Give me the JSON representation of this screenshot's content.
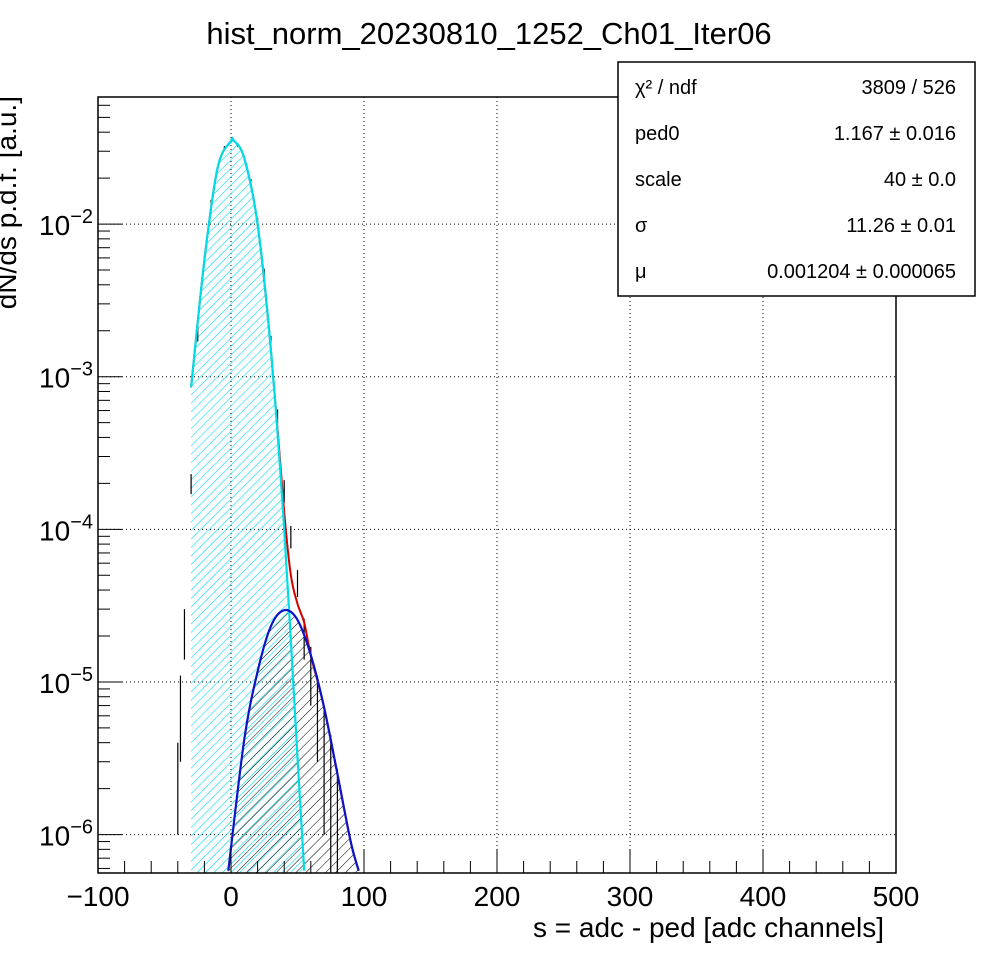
{
  "colors": {
    "total_fit": "#d40000",
    "pedestal": "#00dde8",
    "signal": "#0a14c8",
    "data": "#000000",
    "grid": "#000000"
  },
  "chart_data": {
    "type": "line",
    "title": "hist_norm_20230810_1252_Ch01_Iter06",
    "xlabel": "s = adc - ped [adc channels]",
    "ylabel": "dN/ds p.d.f. [a.u.]",
    "xlim": [
      -100,
      500
    ],
    "ylim": [
      5.6e-07,
      0.068
    ],
    "yscale": "log",
    "grid": true,
    "xticks": [
      {
        "v": -100,
        "label": "−100"
      },
      {
        "v": 0,
        "label": "0"
      },
      {
        "v": 100,
        "label": "100"
      },
      {
        "v": 200,
        "label": "200"
      },
      {
        "v": 300,
        "label": "300"
      },
      {
        "v": 400,
        "label": "400"
      },
      {
        "v": 500,
        "label": "500"
      }
    ],
    "yticks": [
      {
        "v": 1e-06,
        "base": "10",
        "exp": "−6"
      },
      {
        "v": 1e-05,
        "base": "10",
        "exp": "−5"
      },
      {
        "v": 0.0001,
        "base": "10",
        "exp": "−4"
      },
      {
        "v": 0.001,
        "base": "10",
        "exp": "−3"
      },
      {
        "v": 0.01,
        "base": "10",
        "exp": "−2"
      }
    ],
    "series": [
      {
        "role": "pedestal",
        "fill": "hatched",
        "x": [
          -30,
          -20,
          -10,
          0,
          2,
          10,
          20,
          30,
          40,
          50,
          55
        ],
        "y": [
          0.00085,
          0.0058,
          0.0235,
          0.035,
          0.0353,
          0.027,
          0.01,
          0.0015,
          0.0001,
          3.2e-06,
          5.8e-07
        ]
      },
      {
        "role": "signal",
        "fill": "hatched",
        "x": [
          -2,
          10,
          20,
          30,
          40,
          50,
          60,
          70,
          80,
          90,
          96
        ],
        "y": [
          5.8e-07,
          4.2e-06,
          1.17e-05,
          2.32e-05,
          2.95e-05,
          2.55e-05,
          1.5e-05,
          6.8e-06,
          2.5e-06,
          9e-07,
          5.8e-07
        ]
      },
      {
        "role": "total",
        "x": [
          -30,
          -20,
          -10,
          0,
          2,
          10,
          20,
          30,
          40,
          45,
          50,
          55,
          60,
          70,
          80,
          90,
          96
        ],
        "y": [
          0.00085,
          0.0058,
          0.0235,
          0.035,
          0.0353,
          0.027,
          0.01,
          0.0015,
          0.00013,
          5e-05,
          3.25e-05,
          2.45e-05,
          1.5e-05,
          6.8e-06,
          2.5e-06,
          9e-07,
          5.8e-07
        ]
      },
      {
        "role": "data",
        "x": [
          -40,
          -38,
          -35,
          -30,
          -25,
          -20,
          -15,
          -10,
          -5,
          0,
          5,
          10,
          15,
          20,
          25,
          30,
          35,
          40,
          45,
          50,
          55,
          60,
          65,
          70,
          75,
          80
        ],
        "y": [
          2.5e-06,
          7e-06,
          2.2e-05,
          0.0002,
          0.0019,
          0.0058,
          0.0138,
          0.0235,
          0.0315,
          0.035,
          0.033,
          0.027,
          0.019,
          0.0105,
          0.0048,
          0.0017,
          0.00055,
          0.00018,
          9e-05,
          4.5e-05,
          2e-05,
          1.2e-05,
          7e-06,
          4e-06,
          2.5e-06,
          1.5e-06
        ],
        "err": [
          1.5e-06,
          4e-06,
          8e-06,
          3e-05,
          0.0002,
          0.0004,
          0.0006,
          0.0008,
          0.0009,
          0.0009,
          0.0009,
          0.0008,
          0.0007,
          0.0005,
          0.0003,
          0.00015,
          6e-05,
          3e-05,
          1.5e-05,
          9e-06,
          6e-06,
          5e-06,
          4e-06,
          3e-06,
          2e-06,
          1.2e-06
        ]
      }
    ],
    "stats": [
      {
        "label": "χ² / ndf",
        "value": "3809 / 526"
      },
      {
        "label": "ped0",
        "value": "1.167 ± 0.016"
      },
      {
        "label": "scale",
        "value": "40 ± 0.0"
      },
      {
        "label": "σ",
        "value": "11.26 ± 0.01"
      },
      {
        "label": "μ",
        "value": "0.001204 ± 0.000065"
      }
    ]
  }
}
